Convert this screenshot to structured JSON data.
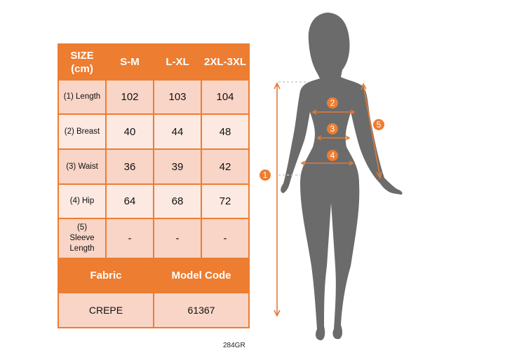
{
  "size_table": {
    "header": [
      "SIZE (cm)",
      "S-M",
      "L-XL",
      "2XL-3XL"
    ],
    "rows": [
      {
        "label": "(1) Length",
        "values": [
          "102",
          "103",
          "104"
        ]
      },
      {
        "label": "(2) Breast",
        "values": [
          "40",
          "44",
          "48"
        ]
      },
      {
        "label": "(3) Waist",
        "values": [
          "36",
          "39",
          "42"
        ]
      },
      {
        "label": "(4) Hip",
        "values": [
          "64",
          "68",
          "72"
        ]
      },
      {
        "label": "(5) Sleeve Length",
        "values": [
          "-",
          "-",
          "-"
        ]
      }
    ],
    "fabric_label": "Fabric",
    "model_code_label": "Model Code",
    "fabric": "CREPE",
    "model_code": "61367"
  },
  "figure": {
    "markers": [
      "1",
      "2",
      "3",
      "4",
      "5"
    ]
  },
  "footer": "284GR",
  "colors": {
    "accent": "#ED7D31",
    "row_dark": "#F8D5C7",
    "row_light": "#FBE9E2",
    "silhouette": "#6b6b6b"
  }
}
